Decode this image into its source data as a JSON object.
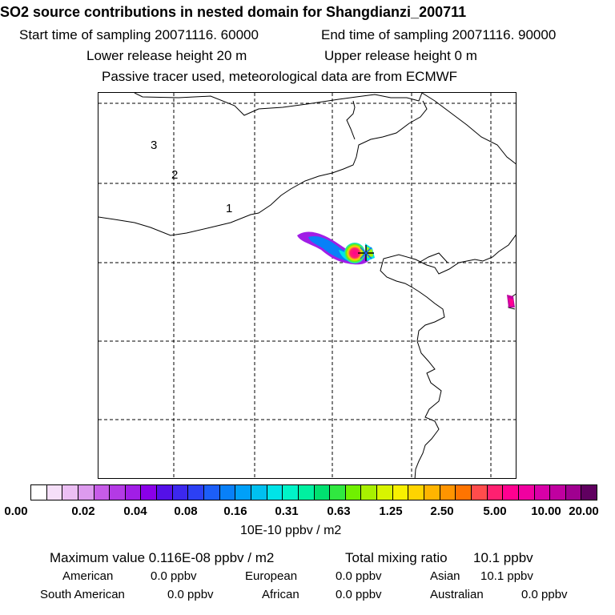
{
  "header": {
    "title": "SO2 source contributions in nested domain for Shangdianzi_200711",
    "start_time": "Start time of sampling 20071116. 60000",
    "end_time": "End time of sampling 20071116. 90000",
    "lower_height": "Lower release height   20 m",
    "upper_height": "Upper release height    0 m",
    "tracer_note": "Passive tracer used, meteorological data are from ECMWF"
  },
  "map": {
    "contour_labels": [
      "3",
      "2",
      "1"
    ],
    "station_marker": "star-marker-icon"
  },
  "colorbar": {
    "colors": [
      "#ffffff",
      "#f5dff8",
      "#ecbff4",
      "#dd9bee",
      "#c75ce8",
      "#b43ae5",
      "#a11ee6",
      "#8a00e8",
      "#5410e8",
      "#3c28ee",
      "#2c40f4",
      "#1c5ef8",
      "#0880f8",
      "#00a0f8",
      "#00c0f0",
      "#00e4e8",
      "#00f4c8",
      "#00f0a0",
      "#00e070",
      "#30e840",
      "#70f000",
      "#a8f000",
      "#d8f400",
      "#f8f000",
      "#ffd400",
      "#ffb400",
      "#ff9400",
      "#ff7400",
      "#ff4c4c",
      "#ff2070",
      "#ff0090",
      "#f000a0",
      "#d800a8",
      "#c000a0",
      "#a00090",
      "#600060"
    ],
    "tick_labels": [
      "0.00",
      "0.02",
      "0.04",
      "0.08",
      "0.16",
      "0.31",
      "0.63",
      "1.25",
      "2.50",
      "5.00",
      "10.00",
      "20.00"
    ],
    "units": "10E-10 ppbv / m2"
  },
  "stats": {
    "max_value": "Maximum value  0.116E-08 ppbv / m2",
    "total_label": "Total mixing ratio",
    "total_value": "10.1 ppbv",
    "regions": [
      {
        "name": "American",
        "value": "0.0 ppbv"
      },
      {
        "name": "European",
        "value": "0.0 ppbv"
      },
      {
        "name": "Asian",
        "value": "10.1 ppbv"
      },
      {
        "name": "South American",
        "value": "0.0 ppbv"
      },
      {
        "name": "African",
        "value": "0.0 ppbv"
      },
      {
        "name": "Australian",
        "value": "0.0 ppbv"
      }
    ]
  }
}
